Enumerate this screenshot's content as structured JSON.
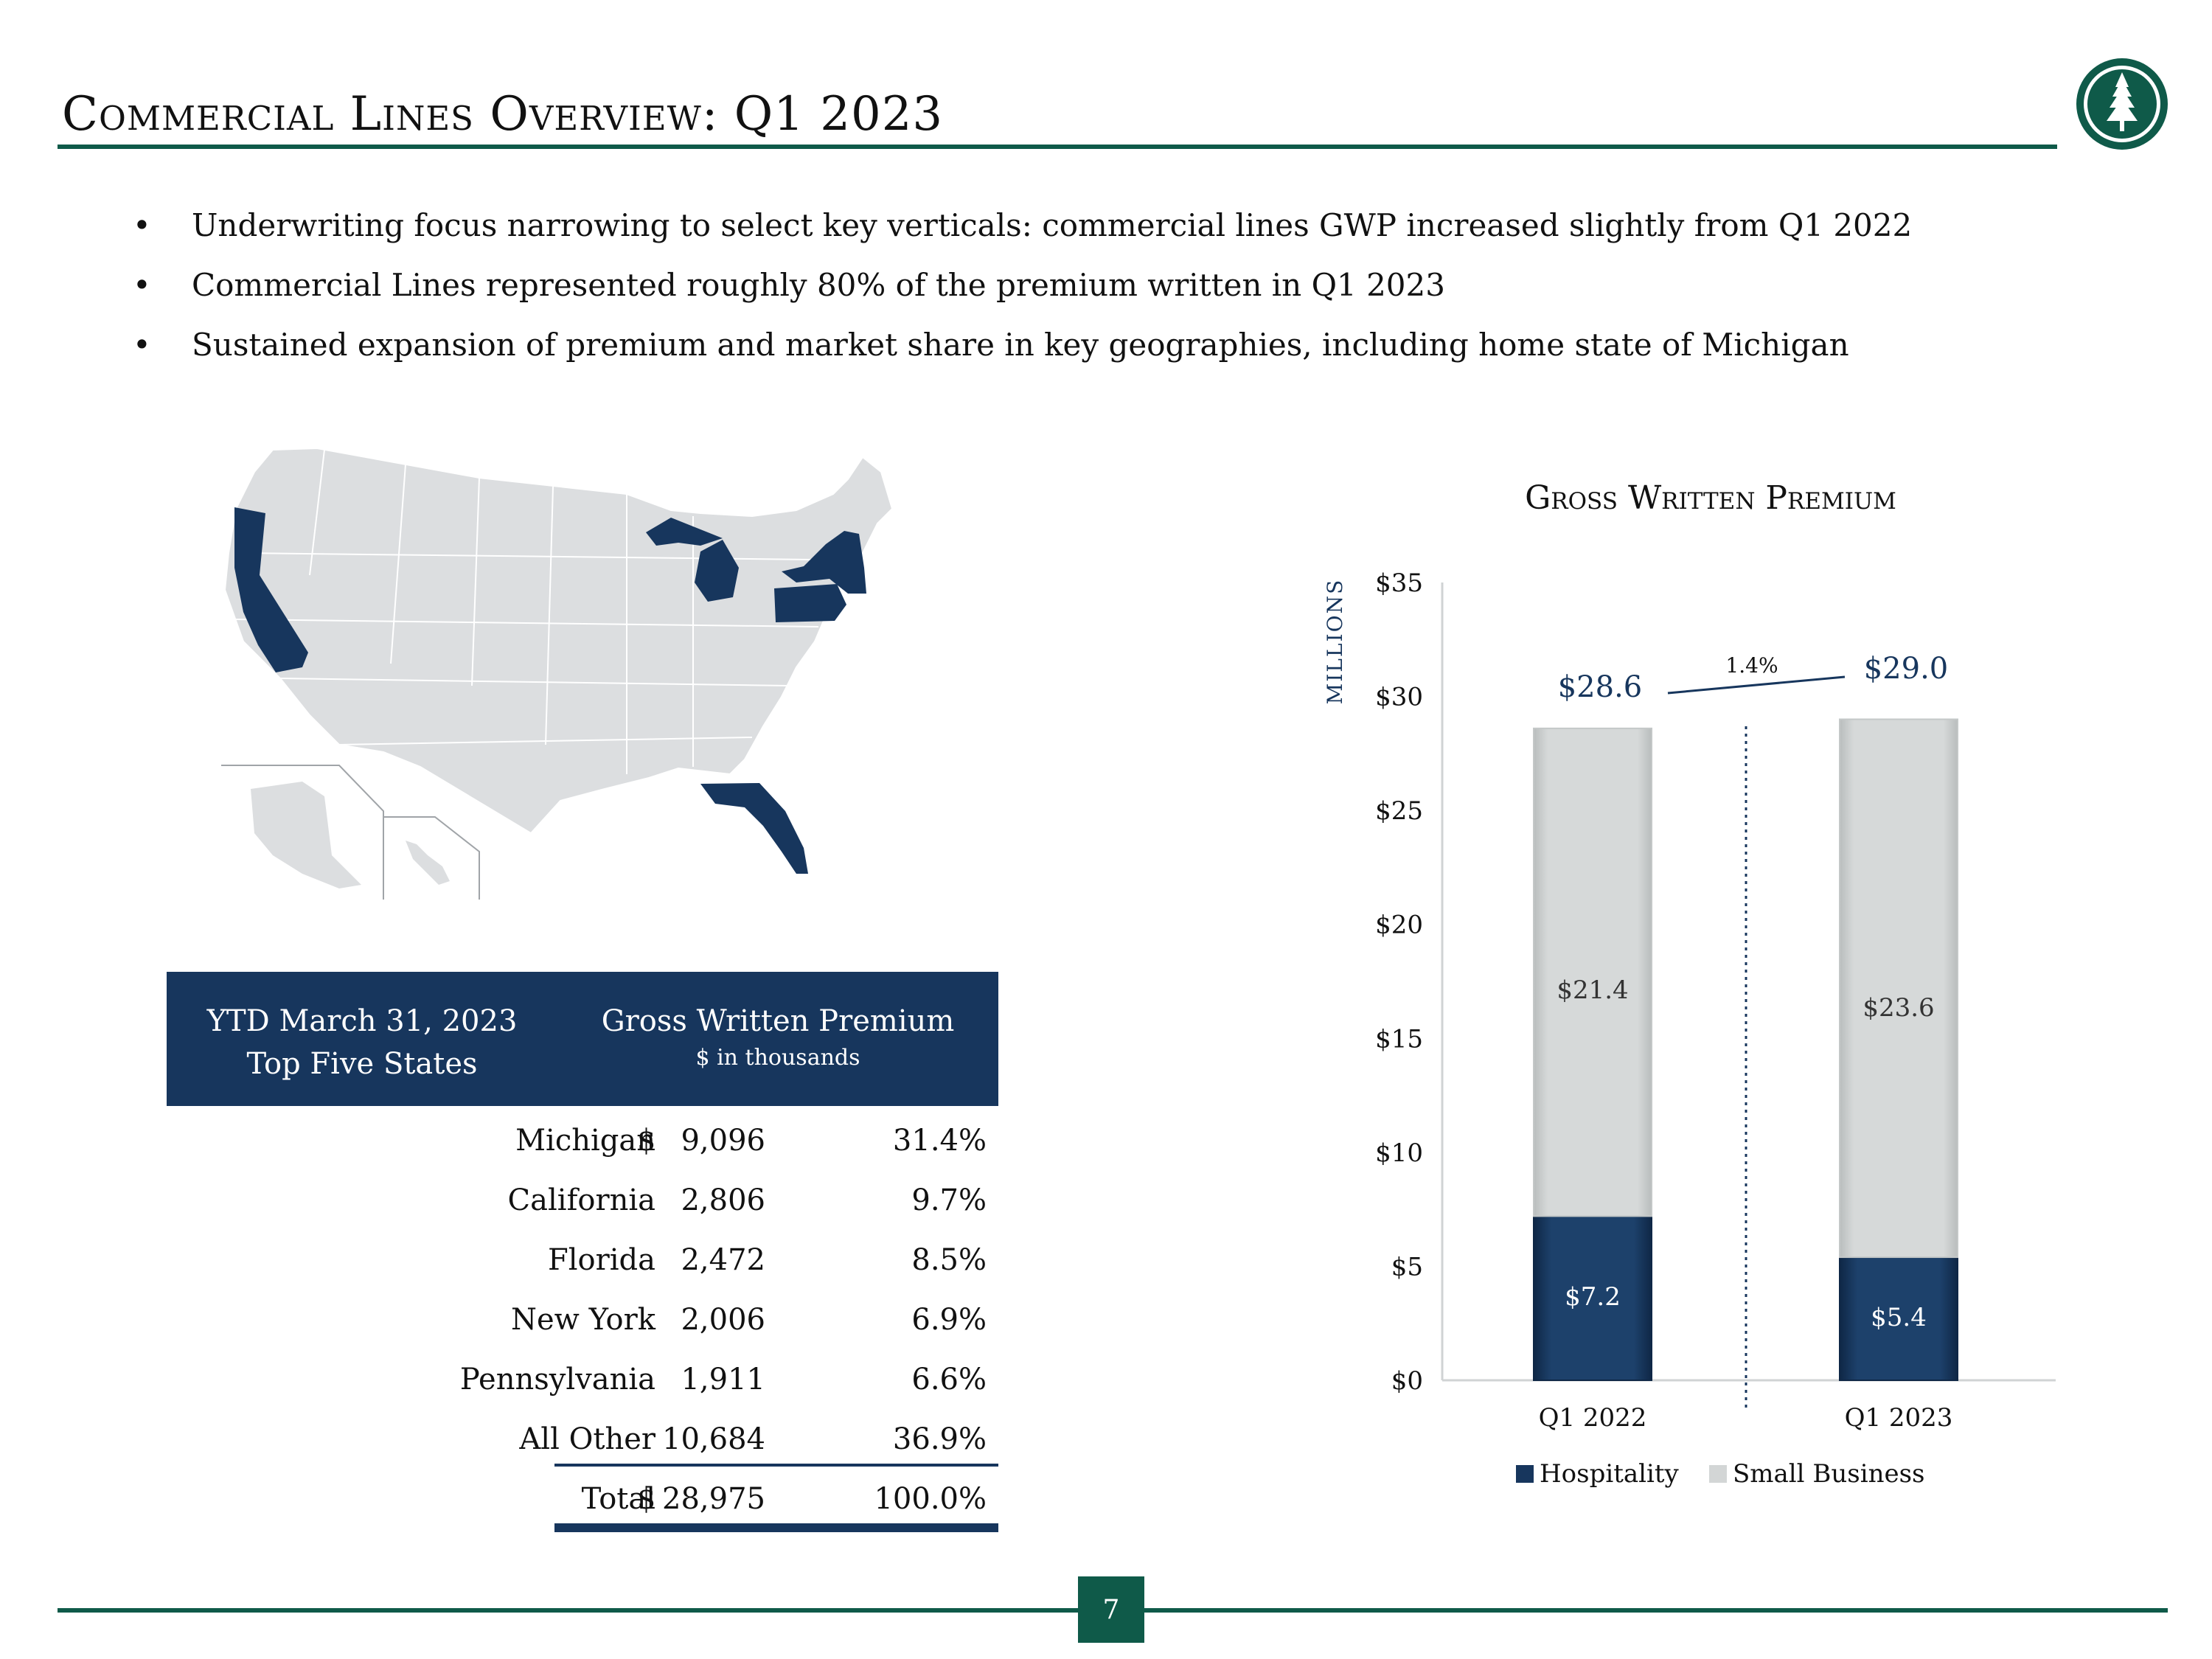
{
  "header": {
    "title": "Commercial Lines Overview: Q1 2023"
  },
  "bullets": [
    "Underwriting focus narrowing to select key verticals: commercial lines GWP increased slightly from Q1 2022",
    "Commercial Lines represented roughly 80% of the premium written in Q1 2023",
    "Sustained expansion of premium and market share in key geographies, including home state of Michigan"
  ],
  "bullet_glyph": "•",
  "map": {
    "highlighted_states": [
      "California",
      "Michigan",
      "New York",
      "Pennsylvania",
      "Florida"
    ],
    "highlight_color": "#17365d",
    "base_color": "#dcdee0"
  },
  "table": {
    "header_col1_line1": "YTD March 31, 2023",
    "header_col1_line2": "Top Five States",
    "header_col2_line1": "Gross Written Premium",
    "header_col2_line2": "$ in thousands",
    "rows": [
      {
        "state": "Michigan",
        "currency": "$",
        "amount": "9,096",
        "pct": "31.4%"
      },
      {
        "state": "California",
        "currency": "",
        "amount": "2,806",
        "pct": "9.7%"
      },
      {
        "state": "Florida",
        "currency": "",
        "amount": "2,472",
        "pct": "8.5%"
      },
      {
        "state": "New York",
        "currency": "",
        "amount": "2,006",
        "pct": "6.9%"
      },
      {
        "state": "Pennsylvania",
        "currency": "",
        "amount": "1,911",
        "pct": "6.6%"
      },
      {
        "state": "All Other",
        "currency": "",
        "amount": "10,684",
        "pct": "36.9%"
      },
      {
        "state": "Total",
        "currency": "$",
        "amount": "28,975",
        "pct": "100.0%"
      }
    ]
  },
  "chart_data": {
    "type": "bar",
    "stacked": true,
    "title": "Gross Written Premium",
    "ylabel": "MILLIONS",
    "ylim": [
      0,
      35
    ],
    "yticks": [
      0,
      5,
      10,
      15,
      20,
      25,
      30,
      35
    ],
    "ytick_labels": [
      "$0",
      "$5",
      "$10",
      "$15",
      "$20",
      "$25",
      "$30",
      "$35"
    ],
    "categories": [
      "Q1 2022",
      "Q1 2023"
    ],
    "series": [
      {
        "name": "Hospitality",
        "values": [
          7.2,
          5.4
        ],
        "labels": [
          "$7.2",
          "$5.4"
        ],
        "color": "#17365d"
      },
      {
        "name": "Small Business",
        "values": [
          21.4,
          23.6
        ],
        "labels": [
          "$21.4",
          "$23.6"
        ],
        "color": "#d3d6d6"
      }
    ],
    "totals": [
      28.6,
      29.0
    ],
    "total_labels": [
      "$28.6",
      "$29.0"
    ],
    "growth_label": "1.4%",
    "legend": "bottom",
    "grid": false
  },
  "footer": {
    "page_number": "7"
  },
  "colors": {
    "accent_green": "#0f5a49",
    "navy": "#17365d"
  }
}
